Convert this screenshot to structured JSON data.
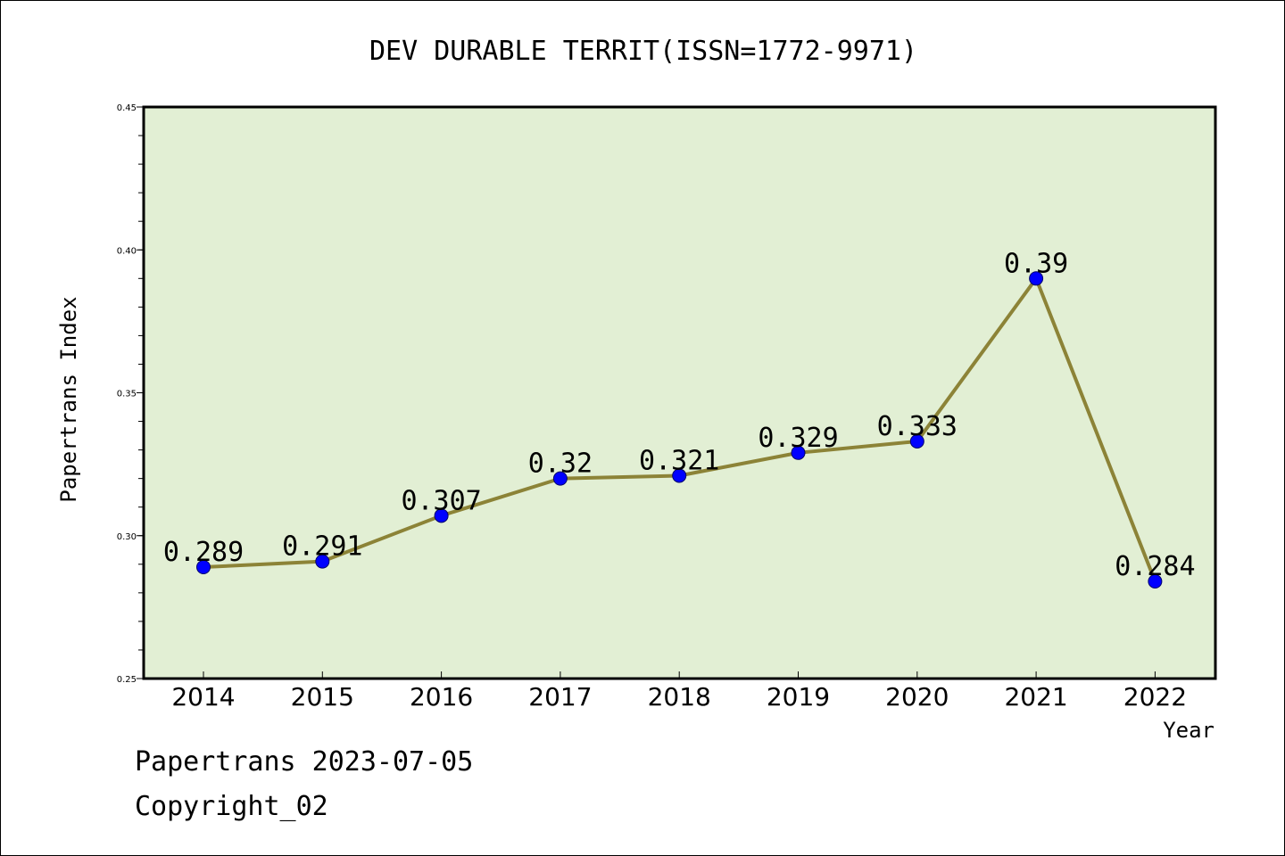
{
  "chart_data": {
    "type": "line",
    "title": "DEV DURABLE TERRIT(ISSN=1772-9971)",
    "xlabel": "Year",
    "ylabel": "Papertrans Index",
    "categories": [
      "2014",
      "2015",
      "2016",
      "2017",
      "2018",
      "2019",
      "2020",
      "2021",
      "2022"
    ],
    "values": [
      0.289,
      0.291,
      0.307,
      0.32,
      0.321,
      0.329,
      0.333,
      0.39,
      0.284
    ],
    "data_labels": [
      "0.289",
      "0.291",
      "0.307",
      "0.32",
      "0.321",
      "0.329",
      "0.333",
      "0.39",
      "0.284"
    ],
    "ylim": [
      0.25,
      0.45
    ],
    "yticks": [
      0.25,
      0.3,
      0.35,
      0.4,
      0.45
    ],
    "ytick_labels": [
      "0.25",
      "0.30",
      "0.35",
      "0.40",
      "0.45"
    ],
    "grid": false,
    "colors": {
      "plot_background": "#e2efd4",
      "line": "#8c8337",
      "marker": "#0000ff",
      "marker_edge": "#00006a"
    }
  },
  "footer": {
    "source_line": "Papertrans 2023-07-05",
    "copyright_line": "Copyright_02"
  }
}
